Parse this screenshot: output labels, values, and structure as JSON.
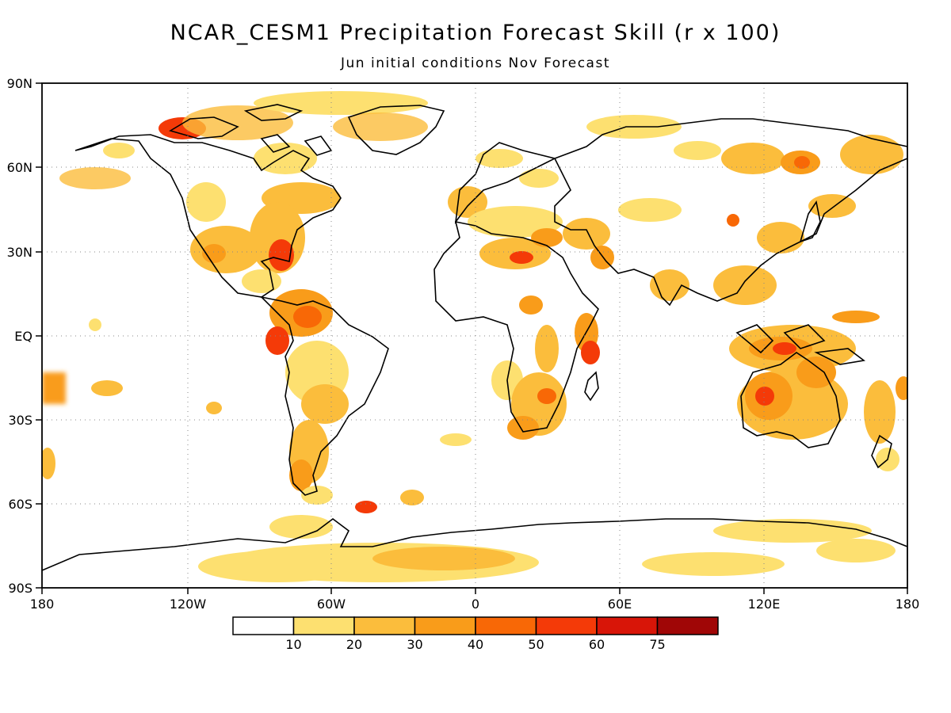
{
  "title": "NCAR_CESM1 Precipitation Forecast Skill (r x 100)",
  "subtitle": "Jun initial conditions  Nov Forecast",
  "map": {
    "projection": "cylindrical equidistant",
    "lon_labels": [
      "180",
      "120W",
      "60W",
      "0",
      "60E",
      "120E",
      "180"
    ],
    "lat_labels": [
      "90N",
      "60N",
      "30N",
      "EQ",
      "30S",
      "60S",
      "90S"
    ],
    "grid": "dotted, every 30 degrees",
    "coastlines": true
  },
  "colorbar": {
    "tick_labels": [
      "10",
      "20",
      "30",
      "40",
      "50",
      "60",
      "75"
    ],
    "colors": [
      "#ffffff",
      "#fde070",
      "#fbbd3c",
      "#f99c1a",
      "#f86806",
      "#f43a08",
      "#d81508",
      "#a00606"
    ]
  }
}
